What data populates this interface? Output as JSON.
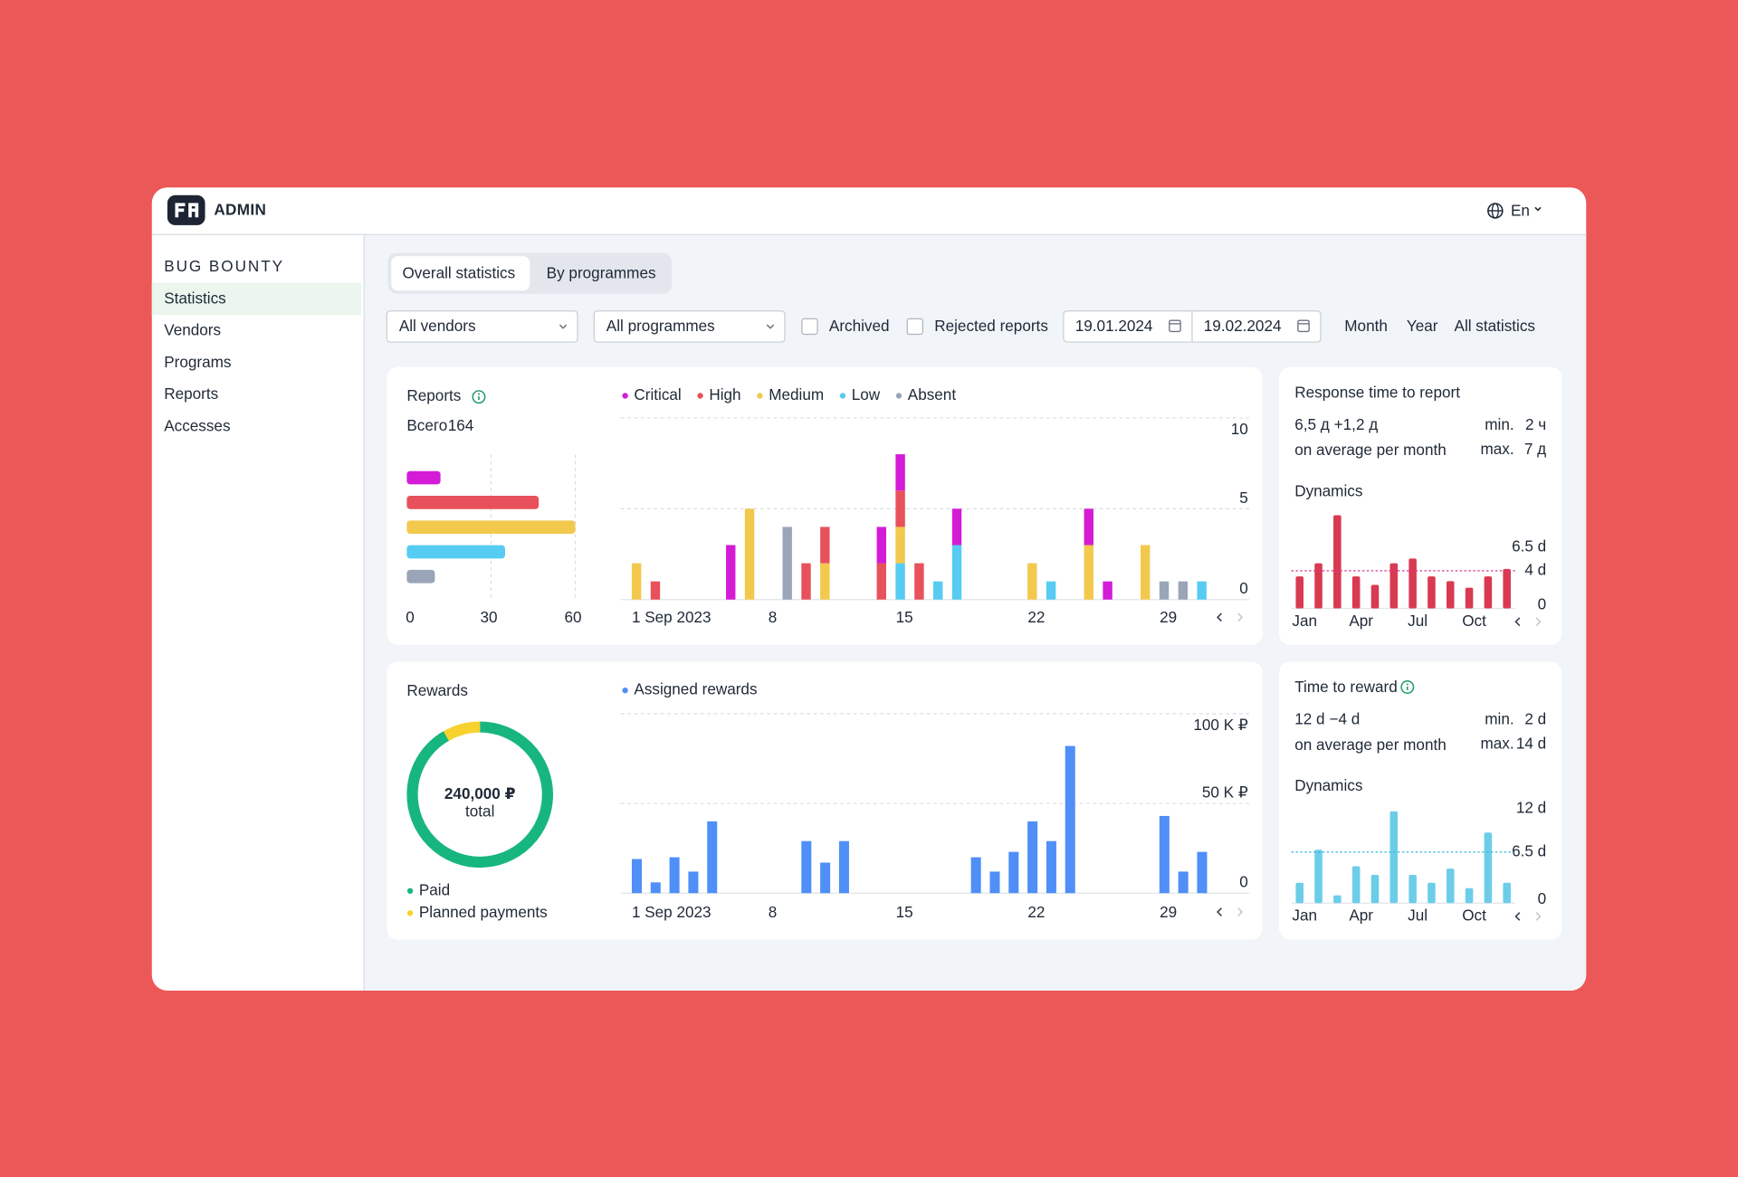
{
  "header": {
    "logo": "ADMIN",
    "language": "En"
  },
  "sidebar": {
    "section": "BUG BOUNTY",
    "items": [
      "Statistics",
      "Vendors",
      "Programs",
      "Reports",
      "Accesses"
    ],
    "active": 0
  },
  "tabs": {
    "items": [
      "Overall statistics",
      "By programmes"
    ],
    "active": 0
  },
  "filters": {
    "vendors": "All vendors",
    "programmes": "All programmes",
    "checkboxes": [
      "Archived",
      "Rejected reports"
    ],
    "date_from": "19.01.2024",
    "date_to": "19.02.2024",
    "periods": [
      "Month",
      "Year",
      "All statistics"
    ],
    "active_period": 0
  },
  "reports": {
    "title": "Reports",
    "total_label": "Всего",
    "total": 164,
    "summary": {
      "type": "hbar",
      "values": [
        12,
        47,
        60,
        35,
        10
      ],
      "xlim": [
        0,
        60
      ],
      "xticks": [
        0,
        30,
        60
      ],
      "grid": true
    },
    "timeline": {
      "type": "stacked_bar",
      "categories": [
        "1 Sep 2023",
        null,
        null,
        null,
        null,
        null,
        null,
        "8",
        null,
        null,
        null,
        null,
        null,
        null,
        "15",
        null,
        null,
        null,
        null,
        null,
        null,
        "22",
        null,
        null,
        null,
        null,
        null,
        null,
        "29",
        null,
        null
      ],
      "series": [
        {
          "name": "Critical",
          "color": "#d41bd6",
          "values": [
            0,
            0,
            0,
            0,
            0,
            3,
            0,
            0,
            0,
            0,
            0,
            0,
            0,
            2,
            2,
            0,
            0,
            2,
            0,
            0,
            0,
            0,
            0,
            0,
            2,
            1,
            0,
            0,
            0,
            0,
            0
          ]
        },
        {
          "name": "High",
          "color": "#e8515b",
          "values": [
            0,
            1,
            0,
            0,
            0,
            0,
            0,
            0,
            0,
            2,
            2,
            0,
            0,
            2,
            2,
            2,
            0,
            0,
            0,
            0,
            0,
            0,
            0,
            0,
            0,
            0,
            0,
            0,
            0,
            0,
            0
          ]
        },
        {
          "name": "Medium",
          "color": "#f2c94c",
          "values": [
            2,
            0,
            0,
            0,
            0,
            0,
            5,
            0,
            0,
            0,
            2,
            0,
            0,
            0,
            2,
            0,
            0,
            0,
            0,
            0,
            0,
            2,
            0,
            0,
            3,
            0,
            0,
            3,
            0,
            0,
            0
          ]
        },
        {
          "name": "Low",
          "color": "#56ccf2",
          "values": [
            0,
            0,
            0,
            0,
            0,
            0,
            0,
            0,
            0,
            0,
            0,
            0,
            0,
            0,
            2,
            0,
            1,
            3,
            0,
            0,
            0,
            0,
            1,
            0,
            0,
            0,
            0,
            0,
            0,
            0,
            1
          ]
        },
        {
          "name": "Absent",
          "color": "#9aa5b8",
          "values": [
            0,
            0,
            0,
            0,
            0,
            0,
            0,
            0,
            4,
            0,
            0,
            0,
            0,
            0,
            0,
            0,
            0,
            0,
            0,
            0,
            0,
            0,
            0,
            0,
            0,
            0,
            0,
            0,
            1,
            1,
            0
          ]
        }
      ],
      "ylim": [
        0,
        10
      ],
      "yticks": [
        0,
        5,
        10
      ],
      "grid": true
    }
  },
  "response_time": {
    "title": "Response time to report",
    "value": "6,5 д",
    "change": "+1,2 д",
    "caption": "on average per month",
    "min_label": "min.",
    "min": "2 ч",
    "max_label": "max.",
    "max": "7 д",
    "dynamics": {
      "type": "bar",
      "title": "Dynamics",
      "categories": [
        "Jan",
        null,
        null,
        "Apr",
        null,
        null,
        "Jul",
        null,
        null,
        "Oct",
        null,
        null
      ],
      "values": [
        3.4,
        4.8,
        9.9,
        3.4,
        2.5,
        4.8,
        5.3,
        3.4,
        2.9,
        2.2,
        3.4,
        4.2
      ],
      "color": "#d83a52",
      "ylim": [
        0,
        10
      ],
      "yticks": [
        0,
        {
          "value": 4,
          "label": "4 d"
        },
        {
          "value": 6.5,
          "label": "6.5 d"
        }
      ],
      "reference": 4,
      "reference_color": "#d8368f"
    }
  },
  "rewards": {
    "title": "Rewards",
    "donut": {
      "type": "donut",
      "labels": [
        "Paid",
        "Planned payments"
      ],
      "values": [
        220000,
        20000
      ],
      "colors": [
        "#18b67f",
        "#f7d22e"
      ],
      "total_text": "240,000 ₽",
      "total_caption": "total"
    },
    "timeline": {
      "type": "bar",
      "categories": [
        "1 Sep 2023",
        null,
        null,
        null,
        null,
        null,
        null,
        "8",
        null,
        null,
        null,
        null,
        null,
        null,
        "15",
        null,
        null,
        null,
        null,
        null,
        null,
        "22",
        null,
        null,
        null,
        null,
        null,
        null,
        "29",
        null,
        null
      ],
      "series": [
        {
          "name": "Assigned rewards",
          "color": "#4f8ff7",
          "values": [
            19000,
            6000,
            20000,
            12000,
            40000,
            0,
            0,
            0,
            0,
            29000,
            17000,
            29000,
            0,
            0,
            0,
            0,
            0,
            0,
            20000,
            12000,
            23000,
            40000,
            29000,
            82000,
            0,
            0,
            0,
            0,
            43000,
            12000,
            23000
          ]
        }
      ],
      "ylim": [
        0,
        100000
      ],
      "yticks": [
        0,
        {
          "value": 50000,
          "label": "50 K ₽"
        },
        {
          "value": 100000,
          "label": "100 K ₽"
        }
      ],
      "grid": true
    }
  },
  "time_to_reward": {
    "title": "Time to reward",
    "value": "12 d",
    "change": "−4 d",
    "caption": "on average per month",
    "min_label": "min.",
    "min": "2 d",
    "max_label": "max.",
    "max": "14 d",
    "dynamics": {
      "type": "bar",
      "title": "Dynamics",
      "categories": [
        "Jan",
        null,
        null,
        "Apr",
        null,
        null,
        "Jul",
        null,
        null,
        "Oct",
        null,
        null
      ],
      "values": [
        2.6,
        6.8,
        1,
        4.7,
        3.6,
        11.7,
        3.6,
        2.6,
        4.4,
        1.9,
        9,
        2.6
      ],
      "color": "#6ccde9",
      "ylim": [
        0,
        12
      ],
      "yticks": [
        0,
        {
          "value": 6.5,
          "label": "6.5 d"
        },
        {
          "value": 12,
          "label": "12 d"
        }
      ],
      "reference": 6.5,
      "reference_color": "#37b6d6"
    }
  }
}
